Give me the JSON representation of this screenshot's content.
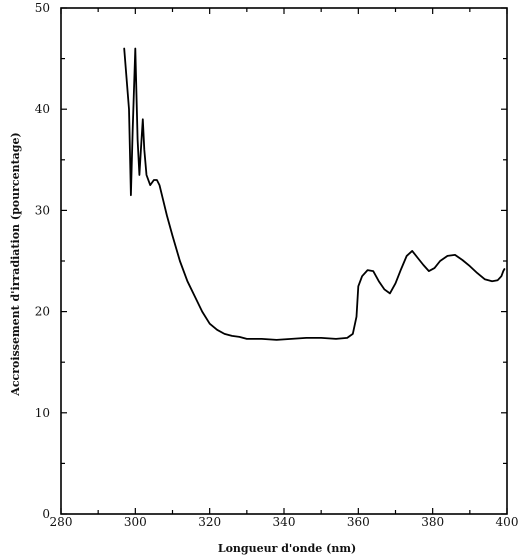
{
  "chart_data": {
    "type": "line",
    "title": "",
    "xlabel": "Longueur d'onde (nm)",
    "ylabel": "Accroissement d'irradiation (pourcentage)",
    "xlim": [
      280,
      400
    ],
    "ylim": [
      0,
      50
    ],
    "x_ticks": [
      280,
      300,
      320,
      340,
      360,
      380,
      400
    ],
    "y_ticks": [
      0,
      10,
      20,
      30,
      40,
      50
    ],
    "grid": false,
    "series": [
      {
        "color": "#000000",
        "x": [
          297,
          298.3,
          298.8,
          299.3,
          300,
          300.6,
          301.1,
          301.5,
          302,
          302.4,
          303,
          304,
          305,
          305.8,
          306.5,
          307.5,
          308.5,
          310,
          312,
          314,
          316,
          318,
          320,
          322,
          324,
          326,
          328,
          330,
          334,
          338,
          342,
          346,
          350,
          354,
          357,
          358.5,
          359.5,
          360,
          361,
          362.5,
          364,
          365.5,
          367,
          368.5,
          370,
          371.5,
          373,
          374.5,
          376,
          377.5,
          379,
          380.5,
          382,
          384,
          386,
          388,
          390,
          392,
          394,
          396,
          397.5,
          398.5,
          399,
          399.3
        ],
        "y": [
          46,
          40,
          31.5,
          38,
          46,
          37,
          33.5,
          36,
          39,
          36,
          33.5,
          32.5,
          33,
          33,
          32.5,
          31,
          29.5,
          27.5,
          25,
          23,
          21.5,
          20,
          18.8,
          18.2,
          17.8,
          17.6,
          17.5,
          17.3,
          17.3,
          17.2,
          17.3,
          17.4,
          17.4,
          17.3,
          17.4,
          17.8,
          19.5,
          22.5,
          23.5,
          24.1,
          24,
          23,
          22.2,
          21.8,
          22.8,
          24.2,
          25.5,
          26,
          25.3,
          24.6,
          24,
          24.3,
          25,
          25.5,
          25.6,
          25.1,
          24.5,
          23.8,
          23.2,
          23,
          23.1,
          23.5,
          24,
          24.2
        ]
      }
    ]
  }
}
